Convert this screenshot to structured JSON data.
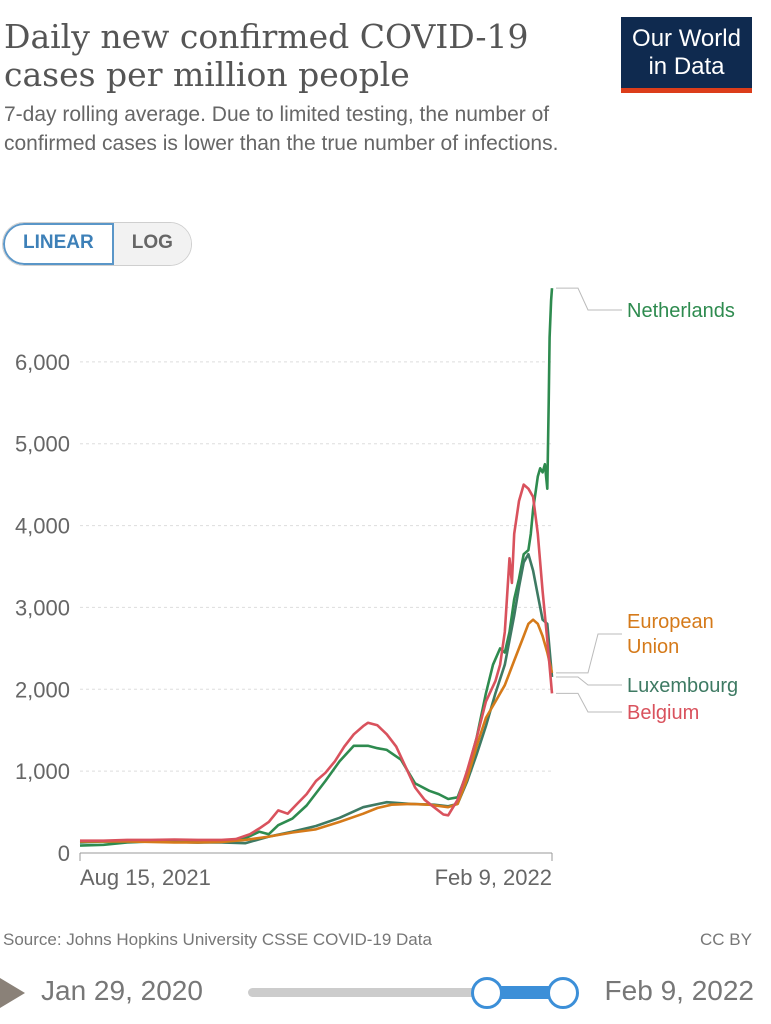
{
  "header": {
    "title": "Daily new confirmed COVID-19 cases per million people",
    "subtitle": "7-day rolling average. Due to limited testing, the number of confirmed cases is lower than the true number of infections.",
    "logo_line1": "Our World",
    "logo_line2": "in Data"
  },
  "scale_toggle": {
    "linear": "LINEAR",
    "log": "LOG",
    "selected": "LINEAR"
  },
  "chart_data": {
    "type": "line",
    "title": "Daily new confirmed COVID-19 cases per million people",
    "xlabel": "",
    "ylabel": "",
    "x_ticks": [
      "Aug 15, 2021",
      "Feb 9, 2022"
    ],
    "y_ticks": [
      "0",
      "1,000",
      "2,000",
      "3,000",
      "4,000",
      "5,000",
      "6,000"
    ],
    "ylim": [
      0,
      7000
    ],
    "grid": true,
    "x_start": "Jul 1, 2021",
    "x_end": "Feb 9, 2022",
    "series": [
      {
        "name": "Netherlands",
        "color": "#2e8b4f",
        "points": [
          [
            0,
            90
          ],
          [
            0.05,
            100
          ],
          [
            0.1,
            130
          ],
          [
            0.15,
            140
          ],
          [
            0.2,
            135
          ],
          [
            0.25,
            130
          ],
          [
            0.3,
            140
          ],
          [
            0.35,
            180
          ],
          [
            0.38,
            260
          ],
          [
            0.4,
            230
          ],
          [
            0.42,
            340
          ],
          [
            0.45,
            420
          ],
          [
            0.48,
            580
          ],
          [
            0.52,
            880
          ],
          [
            0.55,
            1120
          ],
          [
            0.58,
            1310
          ],
          [
            0.61,
            1310
          ],
          [
            0.63,
            1280
          ],
          [
            0.65,
            1260
          ],
          [
            0.68,
            1140
          ],
          [
            0.71,
            850
          ],
          [
            0.74,
            760
          ],
          [
            0.76,
            720
          ],
          [
            0.78,
            660
          ],
          [
            0.8,
            680
          ],
          [
            0.82,
            980
          ],
          [
            0.84,
            1400
          ],
          [
            0.86,
            1950
          ],
          [
            0.875,
            2300
          ],
          [
            0.89,
            2500
          ],
          [
            0.9,
            2450
          ],
          [
            0.91,
            2700
          ],
          [
            0.92,
            3100
          ],
          [
            0.93,
            3350
          ],
          [
            0.94,
            3650
          ],
          [
            0.95,
            3700
          ],
          [
            0.955,
            3900
          ],
          [
            0.96,
            4200
          ],
          [
            0.965,
            4400
          ],
          [
            0.97,
            4600
          ],
          [
            0.975,
            4700
          ],
          [
            0.98,
            4650
          ],
          [
            0.985,
            4750
          ],
          [
            0.99,
            4450
          ],
          [
            0.993,
            5500
          ],
          [
            0.995,
            6300
          ],
          [
            0.998,
            6750
          ],
          [
            1,
            6900
          ]
        ]
      },
      {
        "name": "Luxembourg",
        "color": "#3e7a63",
        "points": [
          [
            0,
            130
          ],
          [
            0.05,
            140
          ],
          [
            0.1,
            135
          ],
          [
            0.15,
            140
          ],
          [
            0.2,
            135
          ],
          [
            0.25,
            130
          ],
          [
            0.3,
            130
          ],
          [
            0.35,
            120
          ],
          [
            0.4,
            200
          ],
          [
            0.45,
            260
          ],
          [
            0.5,
            330
          ],
          [
            0.55,
            430
          ],
          [
            0.6,
            560
          ],
          [
            0.65,
            620
          ],
          [
            0.7,
            600
          ],
          [
            0.75,
            590
          ],
          [
            0.78,
            570
          ],
          [
            0.8,
            600
          ],
          [
            0.82,
            870
          ],
          [
            0.84,
            1200
          ],
          [
            0.86,
            1550
          ],
          [
            0.88,
            1950
          ],
          [
            0.9,
            2300
          ],
          [
            0.91,
            2600
          ],
          [
            0.92,
            2900
          ],
          [
            0.93,
            3250
          ],
          [
            0.94,
            3550
          ],
          [
            0.95,
            3650
          ],
          [
            0.96,
            3450
          ],
          [
            0.97,
            3150
          ],
          [
            0.98,
            2850
          ],
          [
            0.99,
            2800
          ],
          [
            1,
            2150
          ]
        ]
      },
      {
        "name": "European Union",
        "color": "#d57a1a",
        "points": [
          [
            0,
            140
          ],
          [
            0.05,
            140
          ],
          [
            0.1,
            140
          ],
          [
            0.15,
            135
          ],
          [
            0.2,
            130
          ],
          [
            0.25,
            130
          ],
          [
            0.3,
            135
          ],
          [
            0.35,
            160
          ],
          [
            0.4,
            200
          ],
          [
            0.45,
            250
          ],
          [
            0.5,
            290
          ],
          [
            0.55,
            380
          ],
          [
            0.6,
            480
          ],
          [
            0.63,
            550
          ],
          [
            0.66,
            590
          ],
          [
            0.7,
            600
          ],
          [
            0.74,
            590
          ],
          [
            0.78,
            560
          ],
          [
            0.8,
            600
          ],
          [
            0.82,
            900
          ],
          [
            0.84,
            1300
          ],
          [
            0.86,
            1650
          ],
          [
            0.88,
            1850
          ],
          [
            0.9,
            2050
          ],
          [
            0.92,
            2350
          ],
          [
            0.94,
            2650
          ],
          [
            0.95,
            2800
          ],
          [
            0.96,
            2850
          ],
          [
            0.97,
            2800
          ],
          [
            0.98,
            2650
          ],
          [
            0.99,
            2450
          ],
          [
            1,
            2200
          ]
        ]
      },
      {
        "name": "Belgium",
        "color": "#d9525d",
        "points": [
          [
            0,
            150
          ],
          [
            0.05,
            150
          ],
          [
            0.1,
            160
          ],
          [
            0.15,
            160
          ],
          [
            0.2,
            165
          ],
          [
            0.25,
            160
          ],
          [
            0.3,
            160
          ],
          [
            0.33,
            170
          ],
          [
            0.36,
            230
          ],
          [
            0.38,
            300
          ],
          [
            0.4,
            380
          ],
          [
            0.42,
            520
          ],
          [
            0.44,
            480
          ],
          [
            0.46,
            600
          ],
          [
            0.48,
            720
          ],
          [
            0.5,
            880
          ],
          [
            0.52,
            980
          ],
          [
            0.54,
            1120
          ],
          [
            0.56,
            1300
          ],
          [
            0.58,
            1450
          ],
          [
            0.6,
            1550
          ],
          [
            0.61,
            1590
          ],
          [
            0.63,
            1560
          ],
          [
            0.65,
            1450
          ],
          [
            0.67,
            1300
          ],
          [
            0.69,
            1050
          ],
          [
            0.71,
            800
          ],
          [
            0.73,
            650
          ],
          [
            0.75,
            560
          ],
          [
            0.77,
            470
          ],
          [
            0.78,
            460
          ],
          [
            0.8,
            650
          ],
          [
            0.82,
            1000
          ],
          [
            0.84,
            1400
          ],
          [
            0.86,
            1850
          ],
          [
            0.88,
            2100
          ],
          [
            0.89,
            2300
          ],
          [
            0.9,
            2700
          ],
          [
            0.91,
            3600
          ],
          [
            0.915,
            3300
          ],
          [
            0.92,
            3900
          ],
          [
            0.93,
            4300
          ],
          [
            0.94,
            4500
          ],
          [
            0.95,
            4450
          ],
          [
            0.96,
            4350
          ],
          [
            0.97,
            3900
          ],
          [
            0.98,
            3200
          ],
          [
            0.99,
            2600
          ],
          [
            1,
            1950
          ]
        ]
      }
    ]
  },
  "legend": [
    "Netherlands",
    "European Union",
    "Luxembourg",
    "Belgium"
  ],
  "footer": {
    "source": "Source: Johns Hopkins University CSSE COVID-19 Data",
    "license": "CC BY"
  },
  "timeline": {
    "start_date": "Jan 29, 2020",
    "end_date": "Feb 9, 2022",
    "play_icon": "play-icon"
  }
}
